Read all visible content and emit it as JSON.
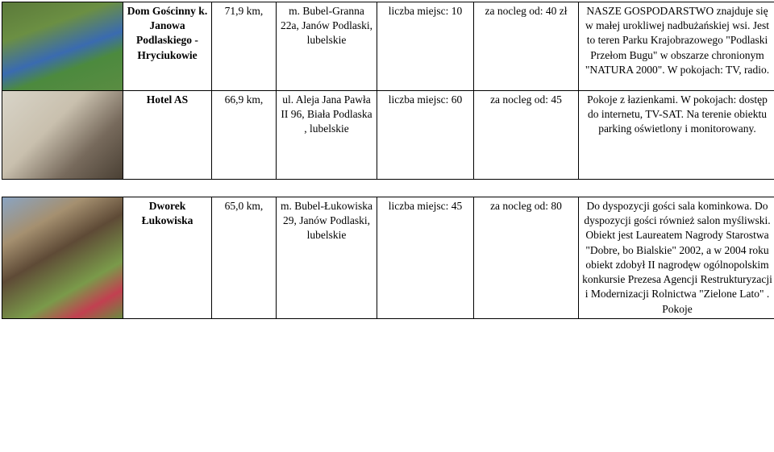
{
  "rows": [
    {
      "img_class": "ph1",
      "name_html": "<span class='bold'>Dom Gościnny k. Janowa Podlaskiego - Hryciukowie</span>",
      "distance": "71,9 km,",
      "address": "m. Bubel-Granna 22a, Janów Podlaski, lubelskie",
      "capacity": "liczba miejsc: 10",
      "price": "za nocleg od: 40 zł",
      "desc": "NASZE GOSPODARSTWO znajduje się w małej urokliwej nadbużańskiej wsi. Jest to teren Parku Krajobrazowego \"Podlaski Przełom Bugu\" w obszarze chronionym \"NATURA 2000\". W pokojach: TV, radio."
    },
    {
      "img_class": "ph2",
      "name_html": "<span class='bold'>Hotel AS</span>",
      "distance": "66,9 km,",
      "address": "ul. Aleja Jana Pawła II  96, Biała Podlaska , lubelskie",
      "capacity": "liczba miejsc: 60",
      "price": "za nocleg od: 45",
      "desc": "Pokoje z łazienkami. W pokojach: dostęp do internetu, TV-SAT. Na terenie obiektu parking oświetlony i monitorowany."
    },
    {
      "img_class": "ph3",
      "name_html": "<span class='bold'>Dworek Łukowiska</span>",
      "distance": "65,0 km,",
      "address": "m. Bubel-Łukowiska 29, Janów Podlaski, lubelskie",
      "capacity": "liczba miejsc: 45",
      "price": "za nocleg od: 80",
      "desc": "Do dyspozycji gości sala kominkowa. Do dyspozycji gości również salon myśliwski. Obiekt jest Laureatem Nagrody Starostwa \"Dobre, bo Bialskie\" 2002, a w 2004 roku obiekt zdobył II nagrodęw ogólnopolskim konkursie Prezesa Agencji Restrukturyzacji i Modernizacji Rolnictwa \"Zielone Lato\" . Pokoje"
    }
  ]
}
